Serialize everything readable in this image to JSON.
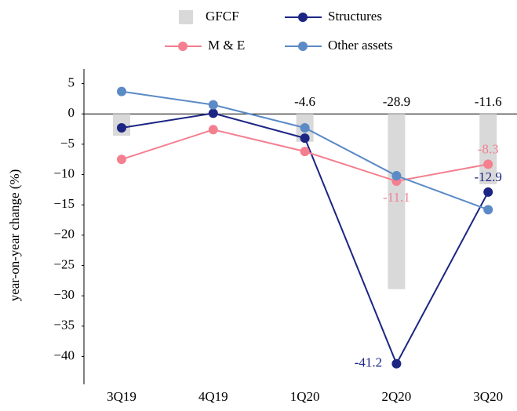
{
  "chart_data": {
    "type": "combo",
    "y_label": "year-on-year change (%)",
    "categories": [
      "3Q19",
      "4Q19",
      "1Q20",
      "2Q20",
      "3Q20"
    ],
    "ylim": [
      -44.6,
      7.4
    ],
    "yticks": [
      5,
      0,
      {
        "value": -5,
        "label": "−5"
      },
      {
        "value": -10,
        "label": "−10"
      },
      {
        "value": -15,
        "label": "−15"
      },
      {
        "value": -20,
        "label": "−20"
      },
      {
        "value": -25,
        "label": "−25"
      },
      {
        "value": -30,
        "label": "−30"
      },
      {
        "value": -35,
        "label": "−35"
      },
      {
        "value": -40,
        "label": "−40"
      }
    ],
    "grid": false,
    "legend": "top",
    "series": [
      {
        "name": "GFCF",
        "type": "bar",
        "color": "#d9d9d9",
        "values": [
          -3.6,
          0.2,
          -4.6,
          -28.9,
          -11.6
        ],
        "value_labels": [
          null,
          null,
          "-4.6",
          "-28.9",
          "-11.6"
        ]
      },
      {
        "name": "Structures",
        "type": "line",
        "color": "#1c2583",
        "values": [
          -2.3,
          0.1,
          -4.0,
          -41.2,
          -12.9
        ],
        "value_labels": [
          null,
          null,
          null,
          "-41.2",
          "-12.9"
        ]
      },
      {
        "name": "M & E",
        "type": "line",
        "color": "#f47f8f",
        "values": [
          -7.5,
          -2.6,
          -6.2,
          -11.1,
          -8.3
        ],
        "value_labels": [
          null,
          null,
          null,
          "-11.1",
          "-8.3"
        ]
      },
      {
        "name": "Other assets",
        "type": "line",
        "color": "#5b8ac6",
        "values": [
          3.7,
          1.5,
          -2.3,
          -10.2,
          -15.8
        ]
      }
    ]
  }
}
